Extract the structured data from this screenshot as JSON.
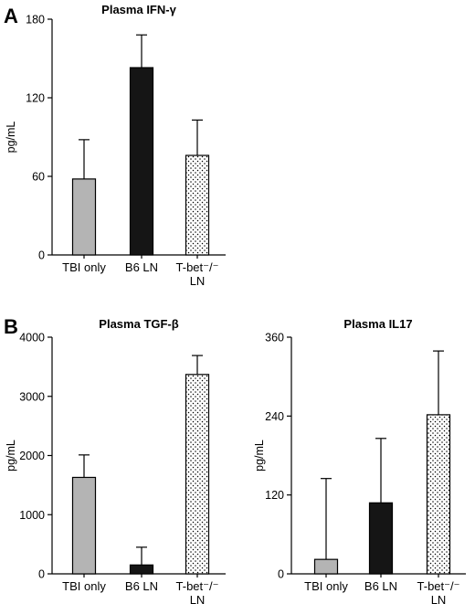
{
  "panels": [
    {
      "letter": "A"
    },
    {
      "letter": "B"
    }
  ],
  "colors": {
    "gray": "#b4b4b4",
    "black": "#151515",
    "dotted": "dotted-white"
  },
  "chart_data": [
    {
      "type": "bar",
      "title": "Plasma IFN-γ",
      "ylabel": "pg/mL",
      "ylim": [
        0,
        180
      ],
      "yticks": [
        0,
        60,
        120,
        180
      ],
      "categories": [
        [
          "TBI only"
        ],
        [
          "B6 LN"
        ],
        [
          "T-bet⁻/⁻",
          "LN"
        ]
      ],
      "fills": [
        "gray",
        "black",
        "dotted"
      ],
      "values": [
        58,
        143,
        76
      ],
      "errors": [
        30,
        25,
        27
      ]
    },
    {
      "type": "bar",
      "title": "Plasma TGF-β",
      "ylabel": "pg/mL",
      "ylim": [
        0,
        4000
      ],
      "yticks": [
        0,
        1000,
        2000,
        3000,
        4000
      ],
      "categories": [
        [
          "TBI only"
        ],
        [
          "B6 LN"
        ],
        [
          "T-bet⁻/⁻",
          "LN"
        ]
      ],
      "fills": [
        "gray",
        "black",
        "dotted"
      ],
      "values": [
        1630,
        150,
        3370
      ],
      "errors": [
        380,
        300,
        320
      ]
    },
    {
      "type": "bar",
      "title": "Plasma IL17",
      "ylabel": "pg/mL",
      "ylim": [
        0,
        360
      ],
      "yticks": [
        0,
        120,
        240,
        360
      ],
      "categories": [
        [
          "TBI only"
        ],
        [
          "B6 LN"
        ],
        [
          "T-bet⁻/⁻",
          "LN"
        ]
      ],
      "fills": [
        "gray",
        "black",
        "dotted"
      ],
      "values": [
        22,
        108,
        242
      ],
      "errors": [
        123,
        98,
        97
      ]
    }
  ]
}
